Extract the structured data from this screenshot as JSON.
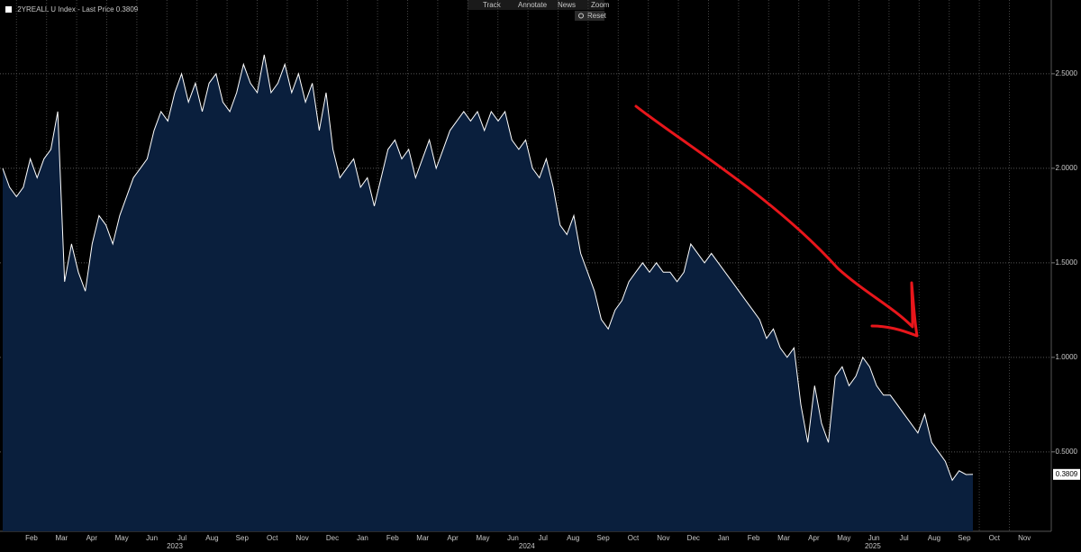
{
  "chart_data": {
    "type": "area",
    "title": ".2YREALL U Index - Last Price 0.3809",
    "toolbar": [
      "Track",
      "Annotate",
      "News",
      "Zoom"
    ],
    "reset": "Reset",
    "last_label": "0.3809",
    "months": [
      "Feb",
      "Mar",
      "Apr",
      "May",
      "Jun",
      "Jul",
      "Aug",
      "Sep",
      "Oct",
      "Nov",
      "Dec",
      "Jan",
      "Feb",
      "Mar",
      "Apr",
      "May",
      "Jun",
      "Jul",
      "Aug",
      "Sep",
      "Oct",
      "Nov",
      "Dec",
      "Jan",
      "Feb",
      "Mar",
      "Apr",
      "May",
      "Jun",
      "Jul",
      "Aug",
      "Sep",
      "Oct",
      "Nov"
    ],
    "years": [
      "2023",
      "2024",
      "2025"
    ],
    "series": [
      {
        "name": ".2YREALL U Index",
        "color": "#ffffff",
        "fill": "#0a1f3d",
        "values": [
          2.0,
          1.9,
          1.85,
          1.9,
          2.05,
          1.95,
          2.05,
          2.1,
          2.3,
          1.4,
          1.6,
          1.45,
          1.35,
          1.6,
          1.75,
          1.7,
          1.6,
          1.75,
          1.85,
          1.95,
          2.0,
          2.05,
          2.2,
          2.3,
          2.25,
          2.4,
          2.5,
          2.35,
          2.45,
          2.3,
          2.45,
          2.5,
          2.35,
          2.3,
          2.4,
          2.55,
          2.45,
          2.4,
          2.6,
          2.4,
          2.45,
          2.55,
          2.4,
          2.5,
          2.35,
          2.45,
          2.2,
          2.4,
          2.1,
          1.95,
          2.0,
          2.05,
          1.9,
          1.95,
          1.8,
          1.95,
          2.1,
          2.15,
          2.05,
          2.1,
          1.95,
          2.05,
          2.15,
          2.0,
          2.1,
          2.2,
          2.25,
          2.3,
          2.25,
          2.3,
          2.2,
          2.3,
          2.25,
          2.3,
          2.15,
          2.1,
          2.15,
          2.0,
          1.95,
          2.05,
          1.9,
          1.7,
          1.65,
          1.75,
          1.55,
          1.45,
          1.35,
          1.2,
          1.15,
          1.25,
          1.3,
          1.4,
          1.45,
          1.5,
          1.45,
          1.5,
          1.45,
          1.45,
          1.4,
          1.45,
          1.6,
          1.55,
          1.5,
          1.55,
          1.5,
          1.45,
          1.4,
          1.35,
          1.3,
          1.25,
          1.2,
          1.1,
          1.15,
          1.05,
          1.0,
          1.05,
          0.75,
          0.55,
          0.85,
          0.65,
          0.55,
          0.9,
          0.95,
          0.85,
          0.9,
          1.0,
          0.95,
          0.85,
          0.8,
          0.8,
          0.75,
          0.7,
          0.65,
          0.6,
          0.7,
          0.55,
          0.5,
          0.45,
          0.35,
          0.4,
          0.38,
          0.3809
        ]
      }
    ],
    "ylim": [
      0.08,
      2.89
    ],
    "yticks": [
      {
        "value": 0.5,
        "label": "0.5000"
      },
      {
        "value": 1.0,
        "label": "1.0000"
      },
      {
        "value": 1.5,
        "label": "1.5000"
      },
      {
        "value": 2.0,
        "label": "2.0000"
      },
      {
        "value": 2.5,
        "label": "2.5000"
      }
    ],
    "grid": true
  }
}
